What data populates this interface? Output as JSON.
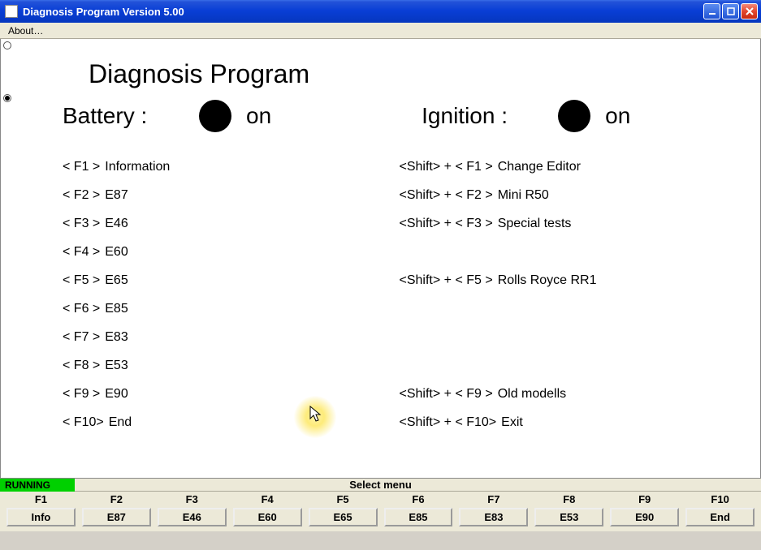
{
  "window": {
    "title": "Diagnosis Program Version 5.00"
  },
  "menubar": {
    "about": "About…"
  },
  "main": {
    "heading": "Diagnosis Program",
    "battery_label": "Battery  :",
    "battery_state": "on",
    "battery_color": "#000000",
    "ignition_label": "Ignition   :",
    "ignition_state": "on",
    "ignition_color": "#000000",
    "left": [
      {
        "key": "< F1 >",
        "label": "Information"
      },
      {
        "key": "< F2 >",
        "label": "E87"
      },
      {
        "key": "< F3 >",
        "label": "E46"
      },
      {
        "key": "< F4 >",
        "label": "E60"
      },
      {
        "key": "< F5 >",
        "label": "E65"
      },
      {
        "key": "< F6 >",
        "label": "E85"
      },
      {
        "key": "< F7 >",
        "label": "E83"
      },
      {
        "key": "< F8 >",
        "label": "E53"
      },
      {
        "key": "< F9 >",
        "label": "E90"
      },
      {
        "key": "< F10>",
        "label": "End"
      }
    ],
    "right": [
      {
        "key": "<Shift> + < F1 >",
        "label": "Change Editor"
      },
      {
        "key": "<Shift> + < F2 >",
        "label": "Mini R50"
      },
      {
        "key": "<Shift> + < F3 >",
        "label": "Special tests"
      },
      {
        "key": "",
        "label": ""
      },
      {
        "key": "<Shift> + < F5 >",
        "label": "Rolls Royce RR1"
      },
      {
        "key": "",
        "label": ""
      },
      {
        "key": "",
        "label": ""
      },
      {
        "key": "",
        "label": ""
      },
      {
        "key": "<Shift> + < F9 >",
        "label": "Old modells"
      },
      {
        "key": "<Shift> + < F10>",
        "label": "Exit"
      }
    ]
  },
  "footer": {
    "status": "RUNNING",
    "select_menu": "Select menu",
    "fkeys": [
      {
        "f": "F1",
        "btn": "Info"
      },
      {
        "f": "F2",
        "btn": "E87"
      },
      {
        "f": "F3",
        "btn": "E46"
      },
      {
        "f": "F4",
        "btn": "E60"
      },
      {
        "f": "F5",
        "btn": "E65"
      },
      {
        "f": "F6",
        "btn": "E85"
      },
      {
        "f": "F7",
        "btn": "E83"
      },
      {
        "f": "F8",
        "btn": "E53"
      },
      {
        "f": "F9",
        "btn": "E90"
      },
      {
        "f": "F10",
        "btn": "End"
      }
    ]
  }
}
